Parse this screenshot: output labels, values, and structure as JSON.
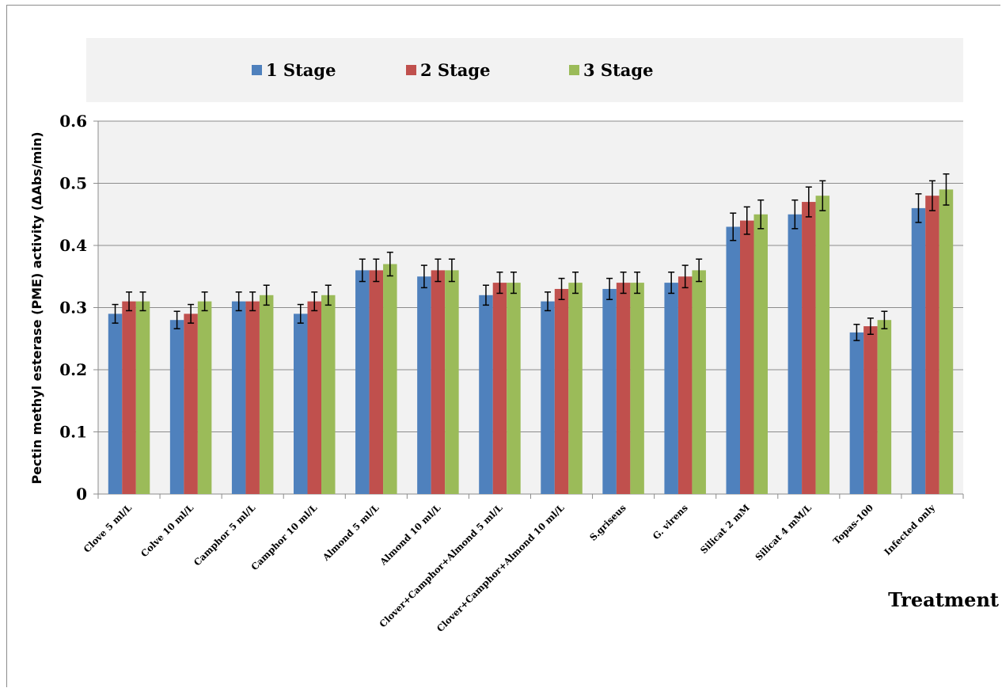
{
  "chart_data": {
    "type": "bar",
    "xlabel": "Treatment",
    "ylabel": "Pectin methyl esterase (PME) activity (ΔAbs/min)",
    "ylim": [
      0,
      0.6
    ],
    "yticks": [
      0,
      0.1,
      0.2,
      0.3,
      0.4,
      0.5,
      0.6
    ],
    "ytick_labels": [
      "0",
      "0.1",
      "0.2",
      "0.3",
      "0.4",
      "0.5",
      "0.6"
    ],
    "grid": "horizontal",
    "legend_position": "top",
    "categories": [
      "Clove 5 ml/L",
      "Colve 10 ml/L",
      "Camphor 5 ml/L",
      "Camphor 10 ml/L",
      "Almond 5 ml/L",
      "Almond 10 ml/L",
      "Clover+Camphor+Almond 5 ml/L",
      "Clover+Camphor+Almond 10 ml/L",
      "S.griseus",
      "G. virens",
      "Silicat 2 mM",
      "Silicat 4 mM/L",
      "Topas-100",
      "Infected only"
    ],
    "series": [
      {
        "name": "1 Stage",
        "color": "#4f81bd",
        "values": [
          0.29,
          0.28,
          0.31,
          0.29,
          0.36,
          0.35,
          0.32,
          0.31,
          0.33,
          0.34,
          0.43,
          0.45,
          0.26,
          0.46
        ],
        "errors": [
          0.015,
          0.014,
          0.015,
          0.015,
          0.018,
          0.018,
          0.016,
          0.015,
          0.017,
          0.017,
          0.022,
          0.023,
          0.013,
          0.023
        ]
      },
      {
        "name": "2 Stage",
        "color": "#c0504d",
        "values": [
          0.31,
          0.29,
          0.31,
          0.31,
          0.36,
          0.36,
          0.34,
          0.33,
          0.34,
          0.35,
          0.44,
          0.47,
          0.27,
          0.48
        ],
        "errors": [
          0.015,
          0.015,
          0.015,
          0.015,
          0.018,
          0.018,
          0.017,
          0.017,
          0.017,
          0.018,
          0.022,
          0.024,
          0.013,
          0.024
        ]
      },
      {
        "name": "3 Stage",
        "color": "#9bbb59",
        "values": [
          0.31,
          0.31,
          0.32,
          0.32,
          0.37,
          0.36,
          0.34,
          0.34,
          0.34,
          0.36,
          0.45,
          0.48,
          0.28,
          0.49
        ],
        "errors": [
          0.015,
          0.015,
          0.016,
          0.016,
          0.019,
          0.018,
          0.017,
          0.017,
          0.017,
          0.018,
          0.023,
          0.024,
          0.014,
          0.025
        ]
      }
    ]
  },
  "colors": {
    "plot_background": "#f2f2f2",
    "legend_background": "#f2f2f2",
    "gridline": "#8c8c8c"
  }
}
